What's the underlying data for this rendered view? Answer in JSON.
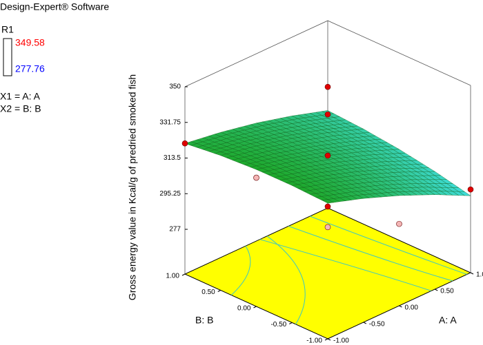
{
  "header": {
    "software": "Design-Expert® Software"
  },
  "legend": {
    "response": "R1",
    "high": 349.58,
    "low": 277.76,
    "high_color": "#ff0000",
    "low_color": "#0000ff",
    "factors": [
      "X1 = A: A",
      "X2 = B: B"
    ]
  },
  "chart_data": {
    "type": "surface",
    "zlabel": "Gross energy value in Kcal/g of predried smoked fish",
    "xlabel": "A: A",
    "ylabel": "B: B",
    "zlim": [
      277,
      350
    ],
    "zticks": [
      277,
      295.25,
      313.5,
      331.75,
      350
    ],
    "xticks": [
      {
        "value": -1,
        "label": "-1.00"
      },
      {
        "value": -0.5,
        "label": "-0.50"
      },
      {
        "value": 0,
        "label": "0.00"
      },
      {
        "value": 0.5,
        "label": "0.50"
      },
      {
        "value": 1,
        "label": "1.00"
      }
    ],
    "yticks": [
      {
        "value": -1,
        "label": "-1.00"
      },
      {
        "value": -0.5,
        "label": "-0.50"
      },
      {
        "value": 0,
        "label": "0.00"
      },
      {
        "value": 0.5,
        "label": "0.50"
      },
      {
        "value": 1,
        "label": "1.00"
      }
    ],
    "surface": {
      "a": [
        -1,
        -0.5,
        0,
        0.5,
        1
      ],
      "b": [
        -1,
        -0.5,
        0,
        0.5,
        1
      ],
      "z": [
        [
          323.5,
          324.3,
          324.2,
          323.1,
          321.0
        ],
        [
          317.5,
          319.1,
          319.8,
          319.5,
          318.2
        ],
        [
          310.5,
          312.9,
          314.4,
          314.9,
          314.5
        ],
        [
          302.5,
          305.7,
          308.0,
          309.4,
          309.7
        ],
        [
          293.5,
          297.6,
          300.7,
          302.8,
          304.0
        ]
      ],
      "low_color": "#3fdede",
      "high_color": "#1ea82a",
      "floor_color": "#ffff00"
    },
    "points": {
      "a": [
        0,
        0,
        0,
        0,
        0,
        -1,
        1,
        -1,
        0
      ],
      "b": [
        0,
        0,
        0,
        0,
        0,
        1,
        -1,
        0,
        -1
      ],
      "z": [
        349.58,
        335.5,
        314.4,
        288.3,
        277.76,
        321,
        296.7,
        320,
        296
      ],
      "colors": [
        "#e00000",
        "#e00000",
        "#e00000",
        "#e00000",
        "#f4b6b6",
        "#e00000",
        "#e00000",
        "#f4b6b6",
        "#f4b6b6"
      ]
    }
  }
}
